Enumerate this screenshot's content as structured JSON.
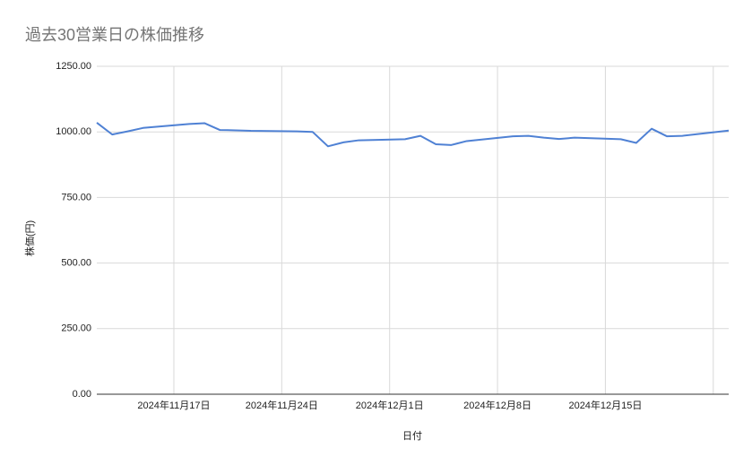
{
  "chart_data": {
    "type": "line",
    "title": "過去30営業日の株価推移",
    "x_label": "日付",
    "y_label": "株価(円)",
    "x": [
      "2024-11-12",
      "2024-11-13",
      "2024-11-14",
      "2024-11-15",
      "2024-11-18",
      "2024-11-19",
      "2024-11-20",
      "2024-11-21",
      "2024-11-22",
      "2024-11-25",
      "2024-11-26",
      "2024-11-27",
      "2024-11-28",
      "2024-11-29",
      "2024-12-02",
      "2024-12-03",
      "2024-12-04",
      "2024-12-05",
      "2024-12-06",
      "2024-12-09",
      "2024-12-10",
      "2024-12-11",
      "2024-12-12",
      "2024-12-13",
      "2024-12-16",
      "2024-12-17",
      "2024-12-18",
      "2024-12-19",
      "2024-12-20",
      "2024-12-23"
    ],
    "values": [
      1035,
      990,
      1002,
      1015,
      1030,
      1033,
      1007,
      1006,
      1004,
      1002,
      1000,
      945,
      960,
      968,
      972,
      985,
      953,
      950,
      965,
      983,
      985,
      978,
      973,
      978,
      972,
      958,
      1012,
      983,
      985,
      1005
    ],
    "color": "#4f81d4",
    "xlim": [
      "2024-11-12",
      "2024-12-23"
    ],
    "xticks": [
      {
        "value": "2024-11-17",
        "label": "2024年11月17日"
      },
      {
        "value": "2024-11-24",
        "label": "2024年11月24日"
      },
      {
        "value": "2024-12-01",
        "label": "2024年12月1日"
      },
      {
        "value": "2024-12-08",
        "label": "2024年12月8日"
      },
      {
        "value": "2024-12-15",
        "label": "2024年12月15日"
      },
      {
        "value": "2024-12-22",
        "label": null
      }
    ],
    "ylim": [
      0,
      1250
    ],
    "yticks": [
      {
        "value": 0,
        "label": "0.00"
      },
      {
        "value": 250,
        "label": "250.00"
      },
      {
        "value": 500,
        "label": "500.00"
      },
      {
        "value": 750,
        "label": "750.00"
      },
      {
        "value": 1000,
        "label": "1000.00"
      },
      {
        "value": 1250,
        "label": "1250.00"
      }
    ],
    "grid": true
  }
}
